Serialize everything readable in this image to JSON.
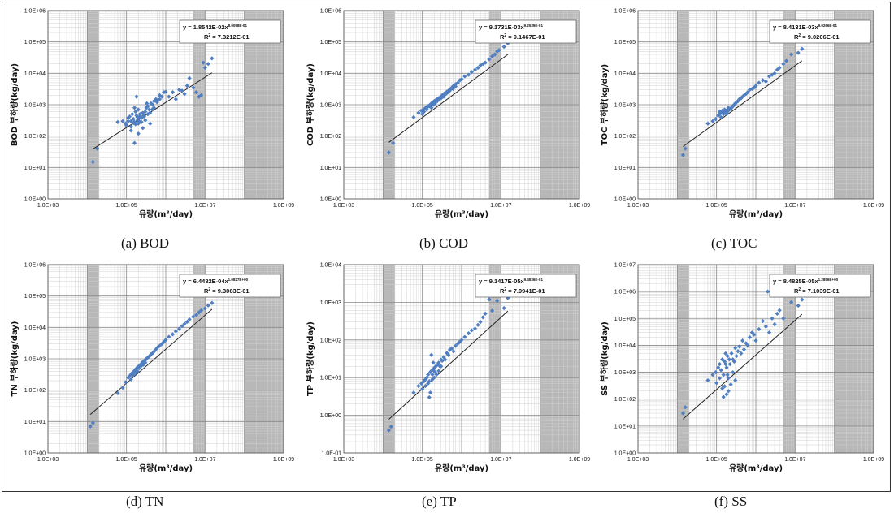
{
  "chart_data": [
    {
      "id": "bod",
      "type": "scatter",
      "caption": "(a) BOD",
      "xlabel": "유량(m³/day)",
      "ylabel": "BOD 부하량(kg/day)",
      "xscale": "log",
      "yscale": "log",
      "xlim": [
        1000,
        1000000000
      ],
      "ylim": [
        1,
        1000000
      ],
      "x_tick_labels": [
        "1.0E+03",
        "1.0E+05",
        "1.0E+07",
        "1.0E+09"
      ],
      "y_tick_labels": [
        "1.0E+00",
        "1.0E+01",
        "1.0E+02",
        "1.0E+03",
        "1.0E+04",
        "1.0E+05",
        "1.0E+06"
      ],
      "equation": {
        "prefix": "y = 1.8542E-02x",
        "exponent": "8.0098E-01",
        "r2_label": "R",
        "r2_sup": "2",
        "r2_value": " = 7.3212E-01"
      },
      "fit": {
        "a": 0.018542,
        "b": 0.80098
      },
      "grid": true,
      "legend": "none",
      "marker_color": "#4F7EC1",
      "x": [
        14000,
        18000,
        60000,
        80000,
        95000,
        110000,
        120000,
        130000,
        140000,
        150000,
        160000,
        170000,
        180000,
        190000,
        200000,
        210000,
        220000,
        240000,
        260000,
        280000,
        300000,
        320000,
        350000,
        380000,
        420000,
        460000,
        500000,
        560000,
        620000,
        700000,
        800000,
        900000,
        1000000,
        1200000,
        1500000,
        1800000,
        2200000,
        2600000,
        3000000,
        3500000,
        4000000,
        5000000,
        6000000,
        7000000,
        8000000,
        9000000,
        12000000,
        15000000,
        100000,
        110000,
        130000,
        150000,
        170000,
        190000,
        210000,
        240000,
        270000,
        300000,
        350000,
        400000,
        450000,
        500000,
        600000,
        700000,
        130000,
        160000,
        200000,
        260000,
        330000,
        160000,
        180000,
        400000,
        200000,
        220000,
        10000000
      ],
      "y": [
        15,
        40,
        280,
        300,
        250,
        380,
        420,
        300,
        500,
        350,
        280,
        600,
        450,
        320,
        700,
        400,
        500,
        380,
        550,
        420,
        600,
        800,
        900,
        700,
        1100,
        1000,
        1300,
        1500,
        1400,
        2000,
        1800,
        2500,
        2600,
        1800,
        2500,
        1500,
        3000,
        2800,
        2200,
        4000,
        7000,
        3500,
        2500,
        1800,
        2000,
        22000,
        20000,
        30000,
        220,
        300,
        200,
        260,
        240,
        400,
        300,
        280,
        450,
        320,
        500,
        550,
        700,
        800,
        1200,
        1500,
        150,
        60,
        120,
        180,
        1100,
        800,
        1800,
        250,
        250,
        400,
        15000
      ]
    },
    {
      "id": "cod",
      "type": "scatter",
      "caption": "(b) COD",
      "xlabel": "유량(m³/day)",
      "ylabel": "COD 부하량(kg/day)",
      "xscale": "log",
      "yscale": "log",
      "xlim": [
        1000,
        1000000000
      ],
      "ylim": [
        1,
        1000000
      ],
      "x_tick_labels": [
        "1.0E+03",
        "1.0E+05",
        "1.0E+07",
        "1.0E+09"
      ],
      "y_tick_labels": [
        "1.0E+00",
        "1.0E+01",
        "1.0E+02",
        "1.0E+03",
        "1.0E+04",
        "1.0E+05",
        "1.0E+06"
      ],
      "equation": {
        "prefix": "y = 9.1731E-03x",
        "exponent": "9.2539E-01",
        "r2_label": "R",
        "r2_sup": "2",
        "r2_value": " = 9.1467E-01"
      },
      "fit": {
        "a": 0.0091731,
        "b": 0.92539
      },
      "grid": true,
      "legend": "none",
      "marker_color": "#4F7EC1",
      "x": [
        14000,
        18000,
        60000,
        80000,
        95000,
        110000,
        120000,
        130000,
        140000,
        150000,
        160000,
        170000,
        180000,
        190000,
        200000,
        210000,
        220000,
        240000,
        260000,
        280000,
        300000,
        320000,
        350000,
        380000,
        420000,
        460000,
        500000,
        560000,
        620000,
        700000,
        800000,
        900000,
        1000000,
        1200000,
        1500000,
        1800000,
        2200000,
        2600000,
        3000000,
        3500000,
        4000000,
        5000000,
        6000000,
        7000000,
        8000000,
        9000000,
        12000000,
        15000000,
        100000,
        110000,
        130000,
        150000,
        170000,
        190000,
        210000,
        240000,
        270000,
        300000,
        350000,
        400000,
        450000,
        500000,
        600000,
        700000,
        130000,
        160000,
        200000
      ],
      "y": [
        30,
        60,
        400,
        550,
        650,
        700,
        800,
        850,
        900,
        950,
        1000,
        1100,
        1150,
        1200,
        1300,
        1250,
        1400,
        1500,
        1600,
        1700,
        1800,
        2000,
        2200,
        2400,
        2600,
        2800,
        3000,
        3500,
        4000,
        4500,
        5000,
        6000,
        6500,
        8000,
        9000,
        11000,
        13000,
        15000,
        18000,
        20000,
        22000,
        28000,
        35000,
        40000,
        50000,
        55000,
        70000,
        90000,
        500,
        600,
        700,
        900,
        800,
        1000,
        1100,
        1300,
        1500,
        1600,
        1800,
        2200,
        2500,
        2800,
        3200,
        3800,
        800,
        1000,
        1100
      ]
    },
    {
      "id": "toc",
      "type": "scatter",
      "caption": "(c) TOC",
      "xlabel": "유량(m³/day)",
      "ylabel": "TOC 부하량(kg/day)",
      "xscale": "log",
      "yscale": "log",
      "xlim": [
        1000,
        1000000000
      ],
      "ylim": [
        1,
        1000000
      ],
      "x_tick_labels": [
        "1.0E+03",
        "1.0E+05",
        "1.0E+07",
        "1.0E+09"
      ],
      "y_tick_labels": [
        "1.0E+00",
        "1.0E+01",
        "1.0E+02",
        "1.0E+03",
        "1.0E+04",
        "1.0E+05",
        "1.0E+06"
      ],
      "equation": {
        "prefix": "y = 8.4131E-03x",
        "exponent": "9.0266E-01",
        "r2_label": "R",
        "r2_sup": "2",
        "r2_value": " = 9.0206E-01"
      },
      "fit": {
        "a": 0.0084131,
        "b": 0.90266
      },
      "grid": true,
      "legend": "none",
      "marker_color": "#4F7EC1",
      "x": [
        14000,
        16000,
        60000,
        80000,
        95000,
        110000,
        120000,
        130000,
        140000,
        150000,
        160000,
        170000,
        180000,
        190000,
        200000,
        220000,
        240000,
        260000,
        280000,
        300000,
        320000,
        350000,
        380000,
        420000,
        460000,
        500000,
        560000,
        620000,
        700000,
        800000,
        900000,
        1000000,
        1200000,
        1500000,
        1800000,
        2200000,
        2600000,
        3000000,
        3500000,
        4000000,
        5000000,
        6000000,
        8000000,
        12000000,
        15000000,
        120000,
        140000,
        160000,
        180000,
        200000,
        230000,
        260000
      ],
      "y": [
        25,
        40,
        250,
        300,
        350,
        450,
        500,
        400,
        550,
        500,
        600,
        650,
        550,
        700,
        650,
        750,
        800,
        900,
        1000,
        1100,
        1200,
        1300,
        1500,
        1600,
        1800,
        2000,
        2200,
        2500,
        3000,
        3200,
        3500,
        4000,
        5000,
        6000,
        5500,
        8000,
        9000,
        10000,
        13000,
        15000,
        20000,
        25000,
        40000,
        45000,
        60000,
        600,
        650,
        700,
        500,
        800,
        750,
        900
      ]
    },
    {
      "id": "tn",
      "type": "scatter",
      "caption": "(d) TN",
      "xlabel": "유량(m³/day)",
      "ylabel": "TN 부하량(kg/day)",
      "xscale": "log",
      "yscale": "log",
      "xlim": [
        1000,
        1000000000
      ],
      "ylim": [
        1,
        1000000
      ],
      "x_tick_labels": [
        "1.0E+03",
        "1.0E+05",
        "1.0E+07",
        "1.0E+09"
      ],
      "y_tick_labels": [
        "1.0E+00",
        "1.0E+01",
        "1.0E+02",
        "1.0E+03",
        "1.0E+04",
        "1.0E+05",
        "1.0E+06"
      ],
      "equation": {
        "prefix": "y = 6.4482E-04x",
        "exponent": "1.0827E+00",
        "r2_label": "R",
        "r2_sup": "2",
        "r2_value": " = 9.3063E-01"
      },
      "fit": {
        "a": 0.00064482,
        "b": 1.0827
      },
      "grid": true,
      "legend": "none",
      "marker_color": "#4F7EC1",
      "x": [
        12000,
        14000,
        60000,
        80000,
        95000,
        110000,
        120000,
        130000,
        140000,
        150000,
        160000,
        170000,
        180000,
        190000,
        200000,
        210000,
        220000,
        240000,
        260000,
        280000,
        300000,
        320000,
        350000,
        380000,
        420000,
        460000,
        500000,
        560000,
        620000,
        700000,
        800000,
        900000,
        1000000,
        1200000,
        1500000,
        1800000,
        2200000,
        2600000,
        3000000,
        3500000,
        4000000,
        5000000,
        6000000,
        7000000,
        8000000,
        10000000,
        12000000,
        15000000,
        130000,
        150000,
        170000,
        190000,
        210000,
        240000,
        270000,
        300000
      ],
      "y": [
        7,
        9,
        80,
        120,
        180,
        250,
        280,
        320,
        350,
        380,
        420,
        450,
        500,
        520,
        550,
        600,
        620,
        700,
        800,
        850,
        900,
        1000,
        1100,
        1200,
        1400,
        1500,
        1700,
        2000,
        2300,
        2600,
        3000,
        3500,
        4000,
        5000,
        6000,
        7500,
        9000,
        11000,
        13000,
        15000,
        18000,
        22000,
        25000,
        30000,
        35000,
        40000,
        50000,
        60000,
        220,
        300,
        350,
        400,
        500,
        600,
        650,
        750
      ]
    },
    {
      "id": "tp",
      "type": "scatter",
      "caption": "(e) TP",
      "xlabel": "유량(m³/day)",
      "ylabel": "TP 부하량(kg/day)",
      "xscale": "log",
      "yscale": "log",
      "xlim": [
        1000,
        1000000000
      ],
      "ylim": [
        0.1,
        10000
      ],
      "x_tick_labels": [
        "1.0E+03",
        "1.0E+05",
        "1.0E+07",
        "1.0E+09"
      ],
      "y_tick_labels": [
        "1.0E-01",
        "1.0E+00",
        "1.0E+01",
        "1.0E+02",
        "1.0E+03",
        "1.0E+04"
      ],
      "equation": {
        "prefix": "y = 9.1417E-05x",
        "exponent": "9.4836E-01",
        "r2_label": "R",
        "r2_sup": "2",
        "r2_value": " = 7.9941E-01"
      },
      "fit": {
        "a": 9.1417e-05,
        "b": 0.94836
      },
      "grid": true,
      "legend": "none",
      "marker_color": "#4F7EC1",
      "x": [
        14000,
        16000,
        60000,
        80000,
        95000,
        110000,
        120000,
        130000,
        140000,
        150000,
        160000,
        170000,
        180000,
        190000,
        200000,
        210000,
        220000,
        240000,
        260000,
        280000,
        300000,
        320000,
        350000,
        380000,
        420000,
        460000,
        500000,
        560000,
        620000,
        700000,
        800000,
        900000,
        1000000,
        1200000,
        1500000,
        1800000,
        2200000,
        2600000,
        3000000,
        3500000,
        4000000,
        5000000,
        6000000,
        8000000,
        12000000,
        15000000,
        100000,
        120000,
        140000,
        160000,
        180000,
        200000,
        230000,
        260000,
        300000,
        150000,
        170000,
        190000
      ],
      "y": [
        0.4,
        0.5,
        4,
        6,
        7,
        8,
        9,
        10,
        12,
        8,
        14,
        15,
        12,
        16,
        18,
        14,
        20,
        22,
        25,
        20,
        30,
        28,
        35,
        30,
        45,
        40,
        55,
        60,
        50,
        70,
        80,
        90,
        100,
        120,
        150,
        180,
        200,
        250,
        300,
        400,
        500,
        1200,
        600,
        1100,
        700,
        1300,
        5,
        6,
        7,
        4,
        9,
        10,
        12,
        15,
        20,
        3,
        40,
        25
      ]
    },
    {
      "id": "ss",
      "type": "scatter",
      "caption": "(f) SS",
      "xlabel": "유량(m³/day)",
      "ylabel": "SS 부하량(kg/day)",
      "xscale": "log",
      "yscale": "log",
      "xlim": [
        1000,
        1000000000
      ],
      "ylim": [
        1,
        10000000
      ],
      "x_tick_labels": [
        "1.0E+03",
        "1.0E+05",
        "1.0E+07",
        "1.0E+09"
      ],
      "y_tick_labels": [
        "1.0E+00",
        "1.0E+01",
        "1.0E+02",
        "1.0E+03",
        "1.0E+04",
        "1.0E+05",
        "1.0E+06",
        "1.0E+07"
      ],
      "equation": {
        "prefix": "y = 8.4825E-05x",
        "exponent": "1.2856E+00",
        "r2_label": "R",
        "r2_sup": "2",
        "r2_value": " = 7.1039E-01"
      },
      "fit": {
        "a": 8.4825e-05,
        "b": 1.2856
      },
      "grid": true,
      "legend": "none",
      "marker_color": "#4F7EC1",
      "x": [
        14000,
        16000,
        60000,
        80000,
        95000,
        110000,
        120000,
        130000,
        140000,
        150000,
        160000,
        170000,
        180000,
        190000,
        200000,
        210000,
        220000,
        240000,
        260000,
        280000,
        300000,
        320000,
        350000,
        380000,
        420000,
        460000,
        500000,
        560000,
        620000,
        700000,
        800000,
        900000,
        1000000,
        1200000,
        1500000,
        1800000,
        2200000,
        2600000,
        3000000,
        3500000,
        4000000,
        5000000,
        6000000,
        8000000,
        12000000,
        15000000,
        100000,
        120000,
        140000,
        160000,
        180000,
        200000,
        230000,
        260000,
        300000,
        150000,
        170000,
        190000,
        2000000
      ],
      "y": [
        30,
        50,
        500,
        800,
        1000,
        1500,
        2000,
        1200,
        3000,
        800,
        2500,
        5000,
        1500,
        4000,
        600,
        3000,
        2000,
        5000,
        3000,
        2500,
        8000,
        4000,
        6000,
        9000,
        5000,
        15000,
        7000,
        12000,
        10000,
        20000,
        30000,
        25000,
        15000,
        40000,
        80000,
        50000,
        30000,
        100000,
        60000,
        150000,
        200000,
        100000,
        800000,
        400000,
        300000,
        500000,
        400,
        600,
        250,
        300,
        150,
        200,
        350,
        1000,
        500,
        120,
        2000,
        800,
        1000000
      ]
    }
  ]
}
